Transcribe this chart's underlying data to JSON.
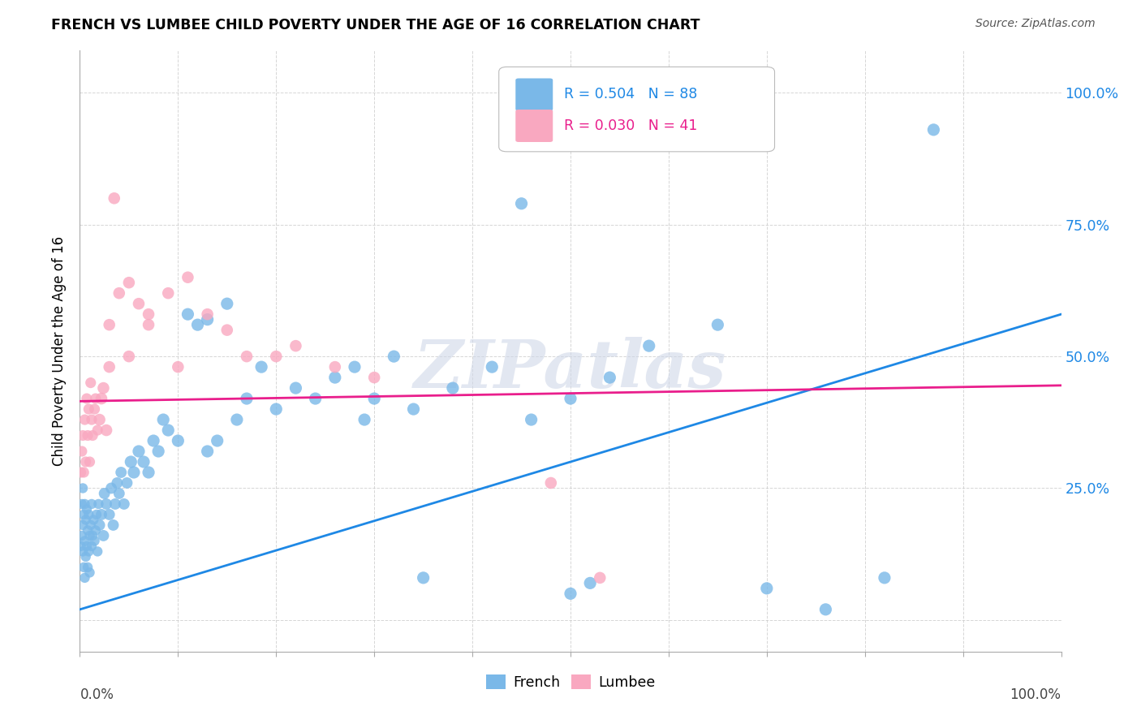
{
  "title": "FRENCH VS LUMBEE CHILD POVERTY UNDER THE AGE OF 16 CORRELATION CHART",
  "source": "Source: ZipAtlas.com",
  "ylabel": "Child Poverty Under the Age of 16",
  "french_R": 0.504,
  "french_N": 88,
  "lumbee_R": 0.03,
  "lumbee_N": 41,
  "french_color": "#7ab8e8",
  "lumbee_color": "#f9a8c0",
  "french_line_color": "#1e88e5",
  "lumbee_line_color": "#e91e8c",
  "watermark": "ZIPatlas",
  "french_line_x0": 0.0,
  "french_line_y0": 0.02,
  "french_line_x1": 1.0,
  "french_line_y1": 0.58,
  "lumbee_line_x0": 0.0,
  "lumbee_line_y0": 0.415,
  "lumbee_line_x1": 1.0,
  "lumbee_line_y1": 0.445,
  "french_pts_x": [
    0.001,
    0.002,
    0.002,
    0.003,
    0.003,
    0.003,
    0.004,
    0.004,
    0.005,
    0.005,
    0.005,
    0.006,
    0.006,
    0.007,
    0.007,
    0.008,
    0.008,
    0.009,
    0.009,
    0.01,
    0.01,
    0.011,
    0.012,
    0.012,
    0.013,
    0.014,
    0.015,
    0.016,
    0.017,
    0.018,
    0.019,
    0.02,
    0.022,
    0.024,
    0.025,
    0.027,
    0.03,
    0.032,
    0.034,
    0.036,
    0.038,
    0.04,
    0.042,
    0.045,
    0.048,
    0.052,
    0.055,
    0.06,
    0.065,
    0.07,
    0.075,
    0.08,
    0.085,
    0.09,
    0.1,
    0.11,
    0.12,
    0.13,
    0.14,
    0.15,
    0.16,
    0.17,
    0.185,
    0.2,
    0.22,
    0.24,
    0.26,
    0.28,
    0.3,
    0.32,
    0.34,
    0.38,
    0.42,
    0.46,
    0.5,
    0.54,
    0.58,
    0.65,
    0.7,
    0.76,
    0.82,
    0.87,
    0.5,
    0.52,
    0.35,
    0.29,
    0.13,
    0.45
  ],
  "french_pts_y": [
    0.14,
    0.16,
    0.22,
    0.13,
    0.18,
    0.25,
    0.1,
    0.2,
    0.08,
    0.15,
    0.22,
    0.12,
    0.19,
    0.14,
    0.21,
    0.1,
    0.17,
    0.13,
    0.2,
    0.09,
    0.16,
    0.18,
    0.14,
    0.22,
    0.16,
    0.19,
    0.15,
    0.17,
    0.2,
    0.13,
    0.22,
    0.18,
    0.2,
    0.16,
    0.24,
    0.22,
    0.2,
    0.25,
    0.18,
    0.22,
    0.26,
    0.24,
    0.28,
    0.22,
    0.26,
    0.3,
    0.28,
    0.32,
    0.3,
    0.28,
    0.34,
    0.32,
    0.38,
    0.36,
    0.34,
    0.58,
    0.56,
    0.32,
    0.34,
    0.6,
    0.38,
    0.42,
    0.48,
    0.4,
    0.44,
    0.42,
    0.46,
    0.48,
    0.42,
    0.5,
    0.4,
    0.44,
    0.48,
    0.38,
    0.42,
    0.46,
    0.52,
    0.56,
    0.06,
    0.02,
    0.08,
    0.93,
    0.05,
    0.07,
    0.08,
    0.38,
    0.57,
    0.79
  ],
  "lumbee_pts_x": [
    0.001,
    0.002,
    0.003,
    0.004,
    0.005,
    0.006,
    0.007,
    0.008,
    0.009,
    0.01,
    0.011,
    0.012,
    0.013,
    0.015,
    0.016,
    0.018,
    0.02,
    0.022,
    0.024,
    0.027,
    0.03,
    0.035,
    0.04,
    0.05,
    0.06,
    0.07,
    0.09,
    0.11,
    0.13,
    0.15,
    0.17,
    0.2,
    0.22,
    0.26,
    0.3,
    0.48,
    0.53,
    0.03,
    0.05,
    0.07,
    0.1
  ],
  "lumbee_pts_y": [
    0.28,
    0.32,
    0.35,
    0.28,
    0.38,
    0.3,
    0.42,
    0.35,
    0.4,
    0.3,
    0.45,
    0.38,
    0.35,
    0.4,
    0.42,
    0.36,
    0.38,
    0.42,
    0.44,
    0.36,
    0.48,
    0.8,
    0.62,
    0.64,
    0.6,
    0.58,
    0.62,
    0.65,
    0.58,
    0.55,
    0.5,
    0.5,
    0.52,
    0.48,
    0.46,
    0.26,
    0.08,
    0.56,
    0.5,
    0.56,
    0.48
  ],
  "ytick_positions": [
    0.0,
    0.25,
    0.5,
    0.75,
    1.0
  ],
  "ytick_labels": [
    "",
    "25.0%",
    "50.0%",
    "75.0%",
    "100.0%"
  ],
  "xlim": [
    0.0,
    1.0
  ],
  "ylim": [
    -0.06,
    1.08
  ]
}
